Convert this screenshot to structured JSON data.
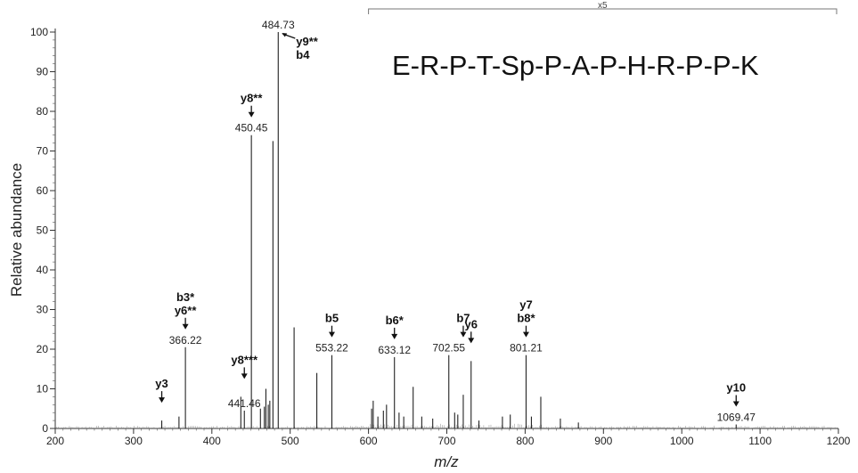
{
  "chart_data": {
    "type": "bar",
    "title": "E-R-P-T-Sp-P-A-P-H-R-P-P-K",
    "xlabel": "m/z",
    "ylabel": "Relative abundance",
    "xlim": [
      200,
      1200
    ],
    "ylim": [
      0,
      100
    ],
    "xticks": [
      200,
      300,
      400,
      500,
      600,
      700,
      800,
      900,
      1000,
      1100,
      1200
    ],
    "yticks": [
      0,
      10,
      20,
      30,
      40,
      50,
      60,
      70,
      80,
      90,
      100
    ],
    "zoom": {
      "label": "x5",
      "range": [
        600,
        1200
      ]
    },
    "peaks": [
      {
        "x": 336.0,
        "y": 2
      },
      {
        "x": 358.0,
        "y": 3
      },
      {
        "x": 366.22,
        "y": 20.5
      },
      {
        "x": 437.0,
        "y": 8
      },
      {
        "x": 441.46,
        "y": 4.5
      },
      {
        "x": 450.45,
        "y": 74
      },
      {
        "x": 462.0,
        "y": 5
      },
      {
        "x": 467.0,
        "y": 5.5
      },
      {
        "x": 469.0,
        "y": 10
      },
      {
        "x": 472.0,
        "y": 6
      },
      {
        "x": 474.0,
        "y": 7
      },
      {
        "x": 478.0,
        "y": 72.5
      },
      {
        "x": 484.73,
        "y": 100
      },
      {
        "x": 505.0,
        "y": 25.5
      },
      {
        "x": 534.0,
        "y": 14
      },
      {
        "x": 553.22,
        "y": 18.5
      },
      {
        "x": 604.0,
        "y": 5
      },
      {
        "x": 606.0,
        "y": 7
      },
      {
        "x": 612.0,
        "y": 3
      },
      {
        "x": 619.0,
        "y": 4.5
      },
      {
        "x": 623.0,
        "y": 6
      },
      {
        "x": 633.12,
        "y": 18
      },
      {
        "x": 639.0,
        "y": 4
      },
      {
        "x": 645.0,
        "y": 3
      },
      {
        "x": 657.0,
        "y": 10.5
      },
      {
        "x": 668.0,
        "y": 3
      },
      {
        "x": 682.0,
        "y": 2.5
      },
      {
        "x": 702.55,
        "y": 18.5
      },
      {
        "x": 710.0,
        "y": 4
      },
      {
        "x": 714.0,
        "y": 3.5
      },
      {
        "x": 721.0,
        "y": 8.5
      },
      {
        "x": 731.0,
        "y": 17
      },
      {
        "x": 741.0,
        "y": 2
      },
      {
        "x": 771.0,
        "y": 3
      },
      {
        "x": 781.0,
        "y": 3.5
      },
      {
        "x": 801.21,
        "y": 18.5
      },
      {
        "x": 808.0,
        "y": 3
      },
      {
        "x": 820.0,
        "y": 8
      },
      {
        "x": 845.0,
        "y": 2.5
      },
      {
        "x": 868.0,
        "y": 1.5
      },
      {
        "x": 1069.47,
        "y": 1
      }
    ],
    "peak_labels": [
      {
        "x": 366.22,
        "y": 20.5,
        "text": "366.22"
      },
      {
        "x": 441.46,
        "y": 4.5,
        "text": "441.46"
      },
      {
        "x": 450.45,
        "y": 74,
        "text": "450.45"
      },
      {
        "x": 484.73,
        "y": 100,
        "text": "484.73"
      },
      {
        "x": 553.22,
        "y": 18.5,
        "text": "553.22"
      },
      {
        "x": 633.12,
        "y": 18,
        "text": "633.12"
      },
      {
        "x": 702.55,
        "y": 18.5,
        "text": "702.55"
      },
      {
        "x": 801.21,
        "y": 18.5,
        "text": "801.21"
      },
      {
        "x": 1069.47,
        "y": 1,
        "text": "1069.47"
      }
    ],
    "annotations": [
      {
        "x": 336.0,
        "y": 2,
        "lines": [
          "y3"
        ]
      },
      {
        "x": 366.22,
        "y": 20.5,
        "lines": [
          "b3*",
          "y6**"
        ]
      },
      {
        "x": 441.46,
        "y": 8,
        "lines": [
          "y8***"
        ]
      },
      {
        "x": 450.45,
        "y": 74,
        "lines": [
          "y8**"
        ]
      },
      {
        "x": 553.22,
        "y": 18.5,
        "lines": [
          "b5"
        ]
      },
      {
        "x": 633.12,
        "y": 18,
        "lines": [
          "b6*"
        ]
      },
      {
        "x": 721.0,
        "y": 18.5,
        "lines": [
          "b7"
        ]
      },
      {
        "x": 731.0,
        "y": 17,
        "lines": [
          "y6"
        ]
      },
      {
        "x": 801.21,
        "y": 18.5,
        "lines": [
          "y7",
          "b8*"
        ]
      },
      {
        "x": 1069.47,
        "y": 1,
        "lines": [
          "y10"
        ]
      },
      {
        "x": 484.73,
        "y": 100,
        "lines": [
          "y9**",
          "b4"
        ],
        "side": "right"
      }
    ]
  }
}
